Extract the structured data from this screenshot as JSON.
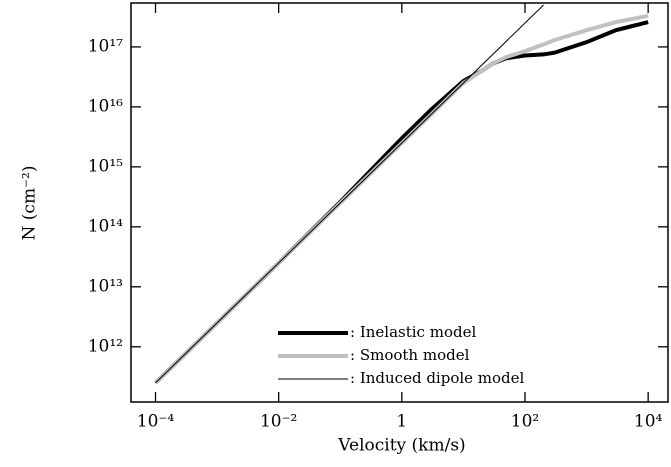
{
  "chart_data": {
    "type": "line",
    "xlabel": "Velocity (km/s)",
    "ylabel": "N (cm⁻²)",
    "xscale": "log",
    "yscale": "log",
    "xlim": [
      4e-05,
      21000
    ],
    "ylim": [
      120000000000.0,
      5.4e+17
    ],
    "xticks": [
      {
        "value": 0.0001,
        "label": "10⁻⁴"
      },
      {
        "value": 0.01,
        "label": "10⁻²"
      },
      1,
      {
        "value": 100,
        "label": "10²"
      },
      {
        "value": 10000,
        "label": "10⁴"
      }
    ],
    "yticks": [
      {
        "value": 1000000000000.0,
        "label": "10¹²"
      },
      {
        "value": 10000000000000.0,
        "label": "10¹³"
      },
      {
        "value": 100000000000000.0,
        "label": "10¹⁴"
      },
      {
        "value": 1000000000000000.0,
        "label": "10¹⁵"
      },
      {
        "value": 1e+16,
        "label": "10¹⁶"
      },
      {
        "value": 1e+17,
        "label": "10¹⁷"
      }
    ],
    "legend": "lower center",
    "series": [
      {
        "name": ": Inelastic model",
        "color": "#000000",
        "linewidth": 4,
        "x": [
          0.0001,
          0.001,
          0.01,
          0.1,
          1,
          3,
          10,
          20,
          30,
          50,
          100,
          200,
          300,
          1000,
          3000,
          10000
        ],
        "values": [
          250000000000.0,
          2500000000000.0,
          25000000000000.0,
          260000000000000.0,
          3000000000000000.0,
          9000000000000000.0,
          2.7e+16,
          4e+16,
          5.3e+16,
          6.5e+16,
          7.2e+16,
          7.5e+16,
          8e+16,
          1.2e+17,
          1.9e+17,
          2.6e+17
        ]
      },
      {
        "name": ": Smooth model",
        "color": "#c0c0c0",
        "linewidth": 4,
        "x": [
          0.0001,
          0.001,
          0.01,
          0.1,
          1,
          3,
          10,
          20,
          30,
          50,
          100,
          200,
          300,
          1000,
          3000,
          10000
        ],
        "values": [
          250000000000.0,
          2500000000000.0,
          25000000000000.0,
          250000000000000.0,
          2500000000000000.0,
          7500000000000000.0,
          2.5e+16,
          4e+16,
          5.3e+16,
          6.8e+16,
          8.5e+16,
          1.1e+17,
          1.3e+17,
          1.9e+17,
          2.6e+17,
          3.3e+17
        ]
      },
      {
        "name": ": Induced dipole model",
        "color": "#000000",
        "linewidth": 1,
        "x": [
          0.0001,
          200
        ],
        "values": [
          250000000000.0,
          5e+17
        ]
      }
    ]
  }
}
